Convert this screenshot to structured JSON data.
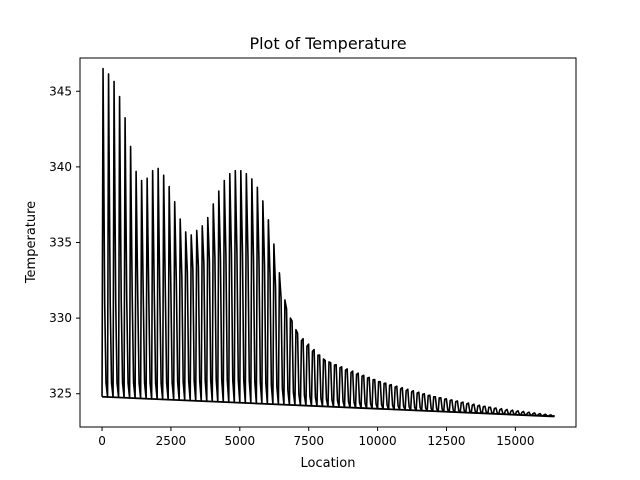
{
  "chart_data": {
    "type": "line",
    "title": "Plot of Temperature",
    "xlabel": "Location",
    "ylabel": "Temperature",
    "xlim": [
      -800,
      17200
    ],
    "ylim": [
      322.8,
      347.2
    ],
    "xticks": [
      0,
      2500,
      5000,
      7500,
      10000,
      12500,
      15000
    ],
    "yticks": [
      325,
      330,
      335,
      340,
      345
    ],
    "xtick_labels": [
      "0",
      "2500",
      "5000",
      "7500",
      "10000",
      "12500",
      "15000"
    ],
    "ytick_labels": [
      "325",
      "330",
      "335",
      "340",
      "345"
    ],
    "grid": false,
    "legend": "none",
    "line_color": "#000000",
    "series": [
      {
        "baseline_x": [
          0,
          16400
        ],
        "baseline_y": [
          324.8,
          323.5
        ],
        "envelope_max": [
          [
            0,
            346.5
          ],
          [
            100,
            346.3
          ],
          [
            300,
            346.0
          ],
          [
            500,
            345.3
          ],
          [
            700,
            344.0
          ],
          [
            900,
            342.5
          ],
          [
            1100,
            340.2
          ],
          [
            1300,
            339.2
          ],
          [
            1500,
            339.0
          ],
          [
            1700,
            339.5
          ],
          [
            1900,
            340.0
          ],
          [
            2100,
            339.8
          ],
          [
            2300,
            339.1
          ],
          [
            2500,
            338.3
          ],
          [
            2700,
            337.1
          ],
          [
            2900,
            336.0
          ],
          [
            3100,
            335.4
          ],
          [
            3300,
            335.6
          ],
          [
            3500,
            336.0
          ],
          [
            3700,
            336.2
          ],
          [
            3900,
            337.1
          ],
          [
            4100,
            338.0
          ],
          [
            4300,
            338.8
          ],
          [
            4500,
            339.4
          ],
          [
            4700,
            339.7
          ],
          [
            4900,
            339.8
          ],
          [
            5100,
            339.7
          ],
          [
            5300,
            339.4
          ],
          [
            5500,
            339.0
          ],
          [
            5700,
            338.3
          ],
          [
            5900,
            337.2
          ],
          [
            6100,
            335.8
          ],
          [
            6300,
            334.0
          ],
          [
            6500,
            332.0
          ],
          [
            6700,
            330.4
          ],
          [
            6900,
            329.6
          ],
          [
            7200,
            328.5
          ],
          [
            7600,
            327.8
          ],
          [
            8000,
            327.3
          ],
          [
            8500,
            326.8
          ],
          [
            9000,
            326.4
          ],
          [
            9500,
            326.1
          ],
          [
            10000,
            325.8
          ],
          [
            10500,
            325.5
          ],
          [
            11000,
            325.2
          ],
          [
            11500,
            325.0
          ],
          [
            12000,
            324.8
          ],
          [
            12500,
            324.6
          ],
          [
            13000,
            324.4
          ],
          [
            13500,
            324.2
          ],
          [
            14000,
            324.1
          ],
          [
            14500,
            323.9
          ],
          [
            15000,
            323.8
          ],
          [
            15500,
            323.7
          ],
          [
            16000,
            323.6
          ],
          [
            16400,
            323.55
          ]
        ],
        "envelope_min": [
          [
            0,
            324.8
          ],
          [
            16400,
            323.5
          ]
        ],
        "mid_level": [
          [
            0,
            331.0
          ],
          [
            1000,
            331.3
          ],
          [
            2000,
            331.6
          ],
          [
            3000,
            333.0
          ],
          [
            4000,
            334.0
          ],
          [
            5000,
            334.3
          ],
          [
            5800,
            333.5
          ],
          [
            6500,
            331.0
          ],
          [
            7000,
            329.0
          ],
          [
            8000,
            327.2
          ],
          [
            10000,
            325.8
          ],
          [
            12000,
            324.8
          ],
          [
            14000,
            324.1
          ],
          [
            16400,
            323.55
          ]
        ],
        "cycle_period": 200
      }
    ]
  }
}
